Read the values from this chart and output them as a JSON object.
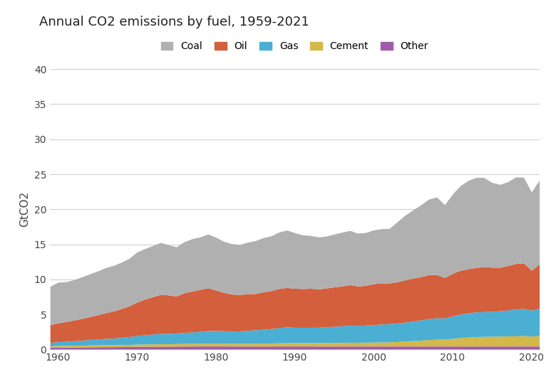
{
  "title": "Annual CO2 emissions by fuel, 1959-2021",
  "ylabel": "GtCO2",
  "bg_color": "#ffffff",
  "grid_color": "#d0d0d0",
  "legend_labels": [
    "Coal",
    "Oil",
    "Gas",
    "Cement",
    "Other"
  ],
  "colors": [
    "#b0b0b0",
    "#d45f3c",
    "#4bafd4",
    "#d4b84a",
    "#a05caa"
  ],
  "ylim": [
    0,
    40
  ],
  "years": [
    1959,
    1960,
    1961,
    1962,
    1963,
    1964,
    1965,
    1966,
    1967,
    1968,
    1969,
    1970,
    1971,
    1972,
    1973,
    1974,
    1975,
    1976,
    1977,
    1978,
    1979,
    1980,
    1981,
    1982,
    1983,
    1984,
    1985,
    1986,
    1987,
    1988,
    1989,
    1990,
    1991,
    1992,
    1993,
    1994,
    1995,
    1996,
    1997,
    1998,
    1999,
    2000,
    2001,
    2002,
    2003,
    2004,
    2005,
    2006,
    2007,
    2008,
    2009,
    2010,
    2011,
    2012,
    2013,
    2014,
    2015,
    2016,
    2017,
    2018,
    2019,
    2020,
    2021
  ],
  "other": [
    0.3,
    0.32,
    0.33,
    0.34,
    0.35,
    0.36,
    0.37,
    0.38,
    0.38,
    0.39,
    0.4,
    0.42,
    0.43,
    0.44,
    0.45,
    0.45,
    0.46,
    0.47,
    0.47,
    0.48,
    0.48,
    0.48,
    0.48,
    0.47,
    0.47,
    0.47,
    0.47,
    0.47,
    0.47,
    0.48,
    0.48,
    0.48,
    0.48,
    0.48,
    0.47,
    0.47,
    0.47,
    0.47,
    0.47,
    0.47,
    0.47,
    0.47,
    0.47,
    0.47,
    0.47,
    0.47,
    0.47,
    0.47,
    0.47,
    0.47,
    0.47,
    0.47,
    0.47,
    0.47,
    0.47,
    0.47,
    0.47,
    0.47,
    0.47,
    0.47,
    0.47,
    0.47,
    0.47
  ],
  "cement": [
    0.2,
    0.22,
    0.23,
    0.24,
    0.25,
    0.26,
    0.27,
    0.28,
    0.28,
    0.29,
    0.3,
    0.32,
    0.33,
    0.34,
    0.35,
    0.35,
    0.36,
    0.37,
    0.38,
    0.39,
    0.4,
    0.41,
    0.4,
    0.39,
    0.39,
    0.4,
    0.41,
    0.42,
    0.43,
    0.45,
    0.47,
    0.48,
    0.48,
    0.48,
    0.48,
    0.49,
    0.51,
    0.52,
    0.54,
    0.54,
    0.55,
    0.57,
    0.58,
    0.59,
    0.65,
    0.72,
    0.78,
    0.84,
    0.92,
    0.98,
    1.0,
    1.1,
    1.2,
    1.28,
    1.35,
    1.38,
    1.4,
    1.42,
    1.44,
    1.46,
    1.48,
    1.42,
    1.5
  ],
  "gas": [
    0.5,
    0.55,
    0.6,
    0.65,
    0.7,
    0.77,
    0.83,
    0.9,
    0.95,
    1.03,
    1.12,
    1.22,
    1.32,
    1.4,
    1.47,
    1.49,
    1.51,
    1.57,
    1.63,
    1.71,
    1.8,
    1.8,
    1.78,
    1.75,
    1.77,
    1.84,
    1.91,
    1.98,
    2.06,
    2.17,
    2.25,
    2.18,
    2.18,
    2.18,
    2.2,
    2.26,
    2.3,
    2.38,
    2.44,
    2.4,
    2.44,
    2.5,
    2.56,
    2.62,
    2.64,
    2.7,
    2.78,
    2.88,
    3.0,
    3.05,
    3.0,
    3.2,
    3.36,
    3.46,
    3.52,
    3.54,
    3.56,
    3.62,
    3.7,
    3.82,
    3.9,
    3.7,
    3.92
  ],
  "oil": [
    2.5,
    2.7,
    2.8,
    2.95,
    3.1,
    3.28,
    3.45,
    3.65,
    3.85,
    4.1,
    4.38,
    4.78,
    5.08,
    5.33,
    5.58,
    5.48,
    5.28,
    5.68,
    5.83,
    5.98,
    6.1,
    5.78,
    5.48,
    5.28,
    5.18,
    5.23,
    5.18,
    5.33,
    5.43,
    5.58,
    5.63,
    5.58,
    5.53,
    5.58,
    5.48,
    5.53,
    5.63,
    5.68,
    5.78,
    5.63,
    5.68,
    5.83,
    5.88,
    5.78,
    5.88,
    6.03,
    6.13,
    6.18,
    6.28,
    6.18,
    5.78,
    6.1,
    6.25,
    6.3,
    6.35,
    6.4,
    6.3,
    6.2,
    6.35,
    6.5,
    6.5,
    5.7,
    6.3
  ],
  "coal": [
    5.5,
    5.8,
    5.7,
    5.75,
    5.95,
    6.1,
    6.25,
    6.45,
    6.5,
    6.62,
    6.77,
    7.15,
    7.22,
    7.3,
    7.42,
    7.16,
    7.02,
    7.28,
    7.48,
    7.48,
    7.68,
    7.55,
    7.28,
    7.2,
    7.15,
    7.35,
    7.54,
    7.74,
    7.8,
    8.06,
    8.2,
    7.94,
    7.67,
    7.54,
    7.41,
    7.41,
    7.54,
    7.68,
    7.74,
    7.54,
    7.54,
    7.67,
    7.74,
    7.8,
    8.58,
    9.24,
    9.75,
    10.27,
    10.79,
    11.06,
    10.4,
    11.31,
    12.09,
    12.61,
    12.87,
    12.74,
    12.09,
    11.83,
    11.96,
    12.35,
    12.22,
    11.18,
    11.96
  ]
}
